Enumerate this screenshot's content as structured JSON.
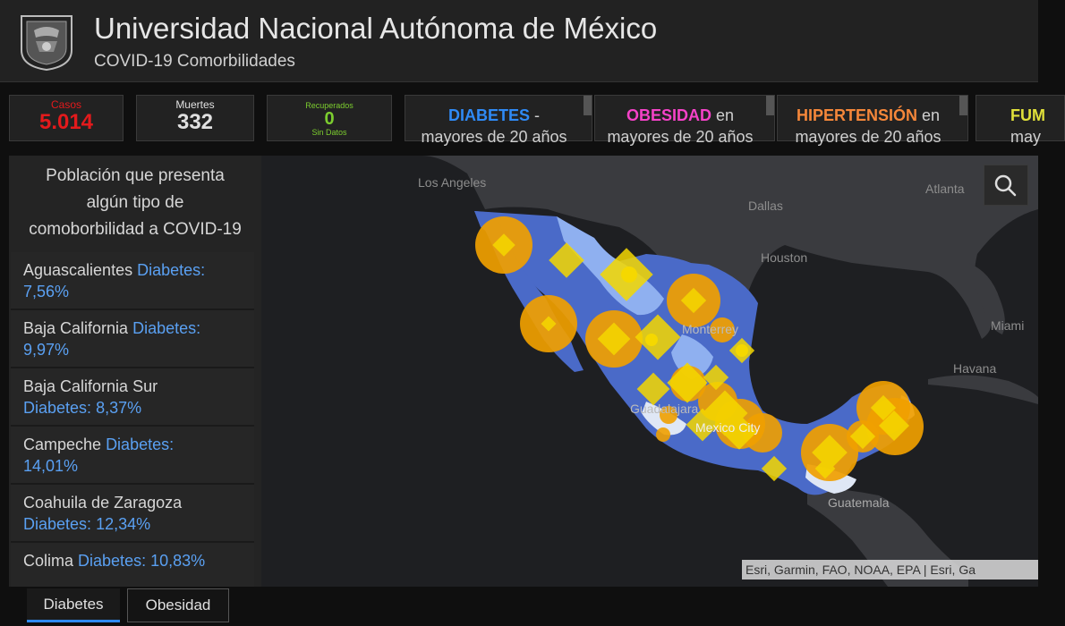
{
  "header": {
    "title": "Universidad Nacional Autónoma de México",
    "subtitle": "COVID-19 Comorbilidades",
    "logo_icon": "unam-seal"
  },
  "indicators": {
    "casos": {
      "label": "Casos",
      "value": "5.014",
      "color": "#e31a1c"
    },
    "muertes": {
      "label": "Muertes",
      "value": "332"
    },
    "recuperados": {
      "label": "Recuperados",
      "value": "0",
      "note": "Sin Datos",
      "color": "#7ccd2f"
    }
  },
  "category_cards": [
    {
      "name": "DIABETES",
      "suffix": " -",
      "line2": "mayores de 20 años",
      "color": "#2f8af5"
    },
    {
      "name": "OBESIDAD",
      "suffix": " en",
      "line2": "mayores de 20 años",
      "color": "#f542c8"
    },
    {
      "name": "HIPERTENSIÓN",
      "suffix": " en",
      "line2": "mayores de 20 años",
      "color": "#f5873a"
    },
    {
      "name": "FUM",
      "suffix": "",
      "line2": "may",
      "color": "#e0e03a"
    }
  ],
  "panel": {
    "heading_lines": [
      "Población que presenta",
      "algún tipo de",
      "comoborbilidad a COVID-19"
    ],
    "items": [
      {
        "state": "Aguascalientes",
        "label": "Diabetes:",
        "value": "7,56%"
      },
      {
        "state": "Baja California",
        "label": "Diabetes:",
        "value": "9,97%"
      },
      {
        "state": "Baja California Sur",
        "label": "Diabetes:",
        "value": "8,37%"
      },
      {
        "state": "Campeche",
        "label": "Diabetes:",
        "value": "14,01%"
      },
      {
        "state": "Coahuila de Zaragoza",
        "label": "Diabetes:",
        "value": "12,34%"
      },
      {
        "state": "Colima",
        "label": "Diabetes:",
        "value": "10,83%"
      }
    ]
  },
  "map": {
    "labels": {
      "los_angeles": "Los Angeles",
      "dallas": "Dallas",
      "atlanta": "Atlanta",
      "houston": "Houston",
      "miami": "Miami",
      "havana": "Havana",
      "monterrey": "Monterrey",
      "guadalajara": "Guadalajara",
      "mexico_city": "Mexico City",
      "guatemala": "Guatemala"
    },
    "attribution": "Esri, Garmin, FAO, NOAA, EPA | Esri, Ga",
    "search_icon": "search-icon",
    "colors": {
      "water": "#1e1f22",
      "land": "#3a3b3f",
      "mexico_dark": "#4a6ac8",
      "mexico_light": "#8fb0f0",
      "circle": "#f0a000",
      "diamond": "#f5d800"
    }
  },
  "tabs": [
    {
      "label": "Diabetes",
      "active": true
    },
    {
      "label": "Obesidad",
      "active": false
    }
  ]
}
